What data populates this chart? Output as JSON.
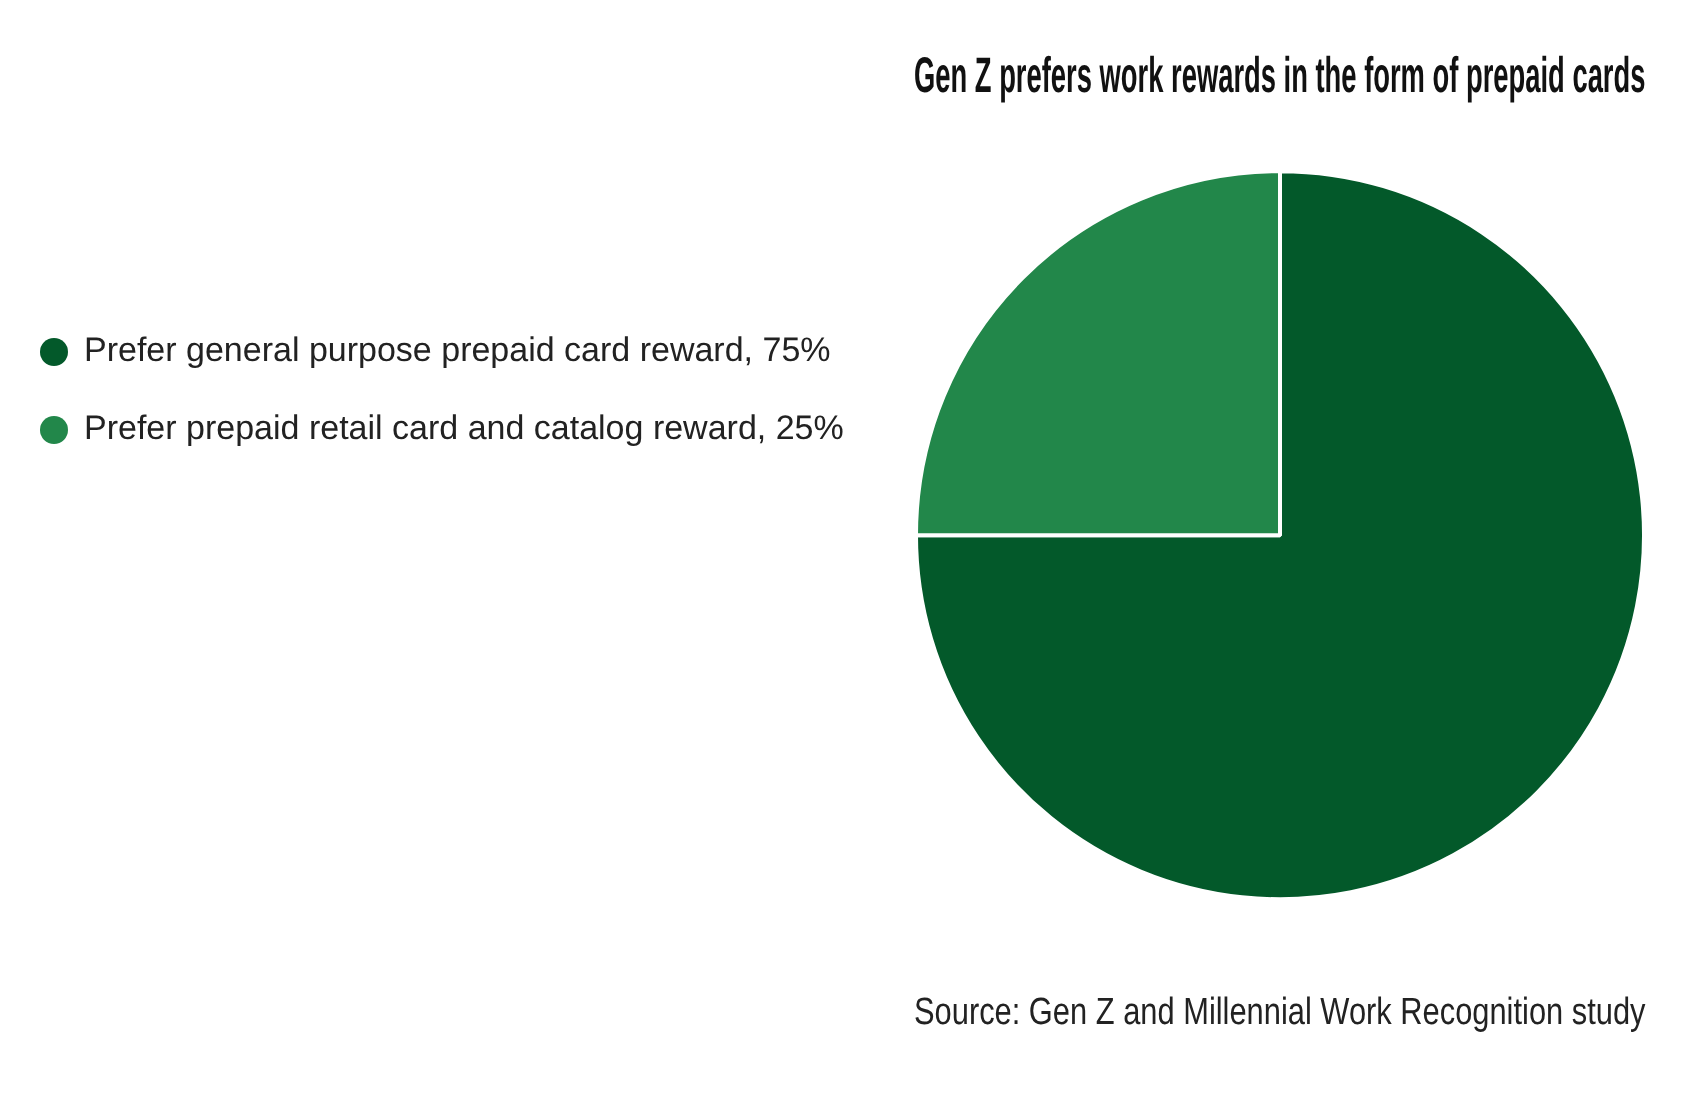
{
  "chart_data": {
    "type": "pie",
    "title": "Gen Z prefers work rewards in the form of prepaid cards",
    "categories": [
      "Prefer general purpose prepaid card reward, 75%",
      "Prefer prepaid retail card and catalog reward, 25%"
    ],
    "values": [
      75,
      25
    ],
    "colors": [
      "#03592a",
      "#22874a"
    ],
    "legend": "left",
    "annotations": [
      "Source: Gen Z and Millennial Work Recognition study"
    ]
  }
}
